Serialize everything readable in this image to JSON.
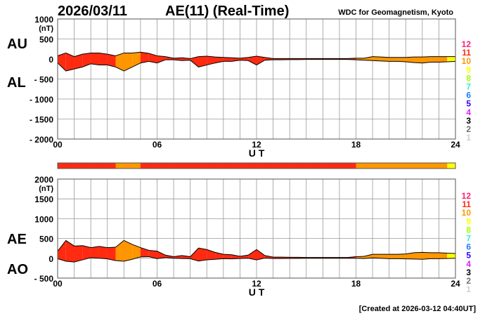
{
  "header": {
    "date": "2026/03/11",
    "title": "AE(11) (Real-Time)",
    "source": "WDC for Geomagnetism, Kyoto"
  },
  "footer": {
    "created": "[Created at 2026-03-12 04:40UT]"
  },
  "level_colors": {
    "12": "#ff1e78",
    "11": "#ff2a10",
    "10": "#ff9600",
    "9": "#ffff00",
    "8": "#a0ff00",
    "7": "#30f0d0",
    "6": "#1e7cff",
    "5": "#2a00ff",
    "4": "#e020ff",
    "3": "#000000",
    "2": "#707070",
    "1": "#d0d0d0"
  },
  "legend_levels": [
    "12",
    "11",
    "10",
    "9",
    "8",
    "7",
    "6",
    "5",
    "4",
    "3",
    "2",
    "1"
  ],
  "chart_data": [
    {
      "type": "area",
      "name": "AU/AL",
      "unit_label": "(nT)",
      "labels": [
        "AU",
        "AL"
      ],
      "xlabel": "U T",
      "xlim": [
        0,
        24
      ],
      "ylim": [
        -2000,
        1000
      ],
      "yticks": [
        "1000",
        "500",
        "0",
        "- 500",
        "- 1000",
        "- 1500",
        "- 2000"
      ],
      "ytick_values": [
        1000,
        500,
        0,
        -500,
        -1000,
        -1500,
        -2000
      ],
      "xticks": [
        "00",
        "06",
        "12",
        "18",
        "24"
      ],
      "xtick_values": [
        0,
        6,
        12,
        18,
        24
      ],
      "grid": true
    },
    {
      "type": "area",
      "name": "AE/AO",
      "unit_label": "(nT)",
      "labels": [
        "AE",
        "AO"
      ],
      "xlabel": "U T",
      "xlim": [
        0,
        24
      ],
      "ylim": [
        -500,
        2000
      ],
      "yticks": [
        "2000",
        "1500",
        "1000",
        "500",
        "0",
        "- 500"
      ],
      "ytick_values": [
        2000,
        1500,
        1000,
        500,
        0,
        -500
      ],
      "xticks": [
        "00",
        "06",
        "12",
        "18",
        "24"
      ],
      "xtick_values": [
        0,
        6,
        12,
        18,
        24
      ],
      "grid": true
    }
  ],
  "series": {
    "hours_step": 0.5,
    "AU": [
      80,
      150,
      60,
      120,
      150,
      150,
      120,
      80,
      150,
      150,
      170,
      140,
      80,
      60,
      20,
      30,
      10,
      60,
      70,
      50,
      40,
      30,
      20,
      40,
      70,
      40,
      10,
      10,
      10,
      10,
      10,
      10,
      10,
      10,
      10,
      10,
      20,
      20,
      60,
      50,
      40,
      40,
      40,
      50,
      50,
      60,
      60,
      60,
      60
    ],
    "AL": [
      -100,
      -300,
      -250,
      -200,
      -120,
      -150,
      -150,
      -200,
      -300,
      -200,
      -100,
      -60,
      -100,
      -20,
      -20,
      -40,
      -30,
      -200,
      -150,
      -100,
      -60,
      -60,
      -30,
      -40,
      -150,
      -30,
      -20,
      -20,
      -15,
      -15,
      -10,
      -10,
      -10,
      -10,
      -10,
      -10,
      -20,
      -30,
      -40,
      -50,
      -60,
      -60,
      -70,
      -90,
      -100,
      -80,
      -80,
      -70,
      -60
    ],
    "activity_level": [
      11,
      11,
      11,
      11,
      11,
      11,
      11,
      10,
      10,
      10,
      11,
      11,
      11,
      11,
      11,
      11,
      11,
      11,
      11,
      11,
      11,
      11,
      11,
      11,
      11,
      11,
      11,
      11,
      11,
      11,
      11,
      11,
      11,
      11,
      11,
      11,
      10,
      10,
      10,
      10,
      10,
      10,
      10,
      10,
      10,
      10,
      10,
      9
    ]
  }
}
